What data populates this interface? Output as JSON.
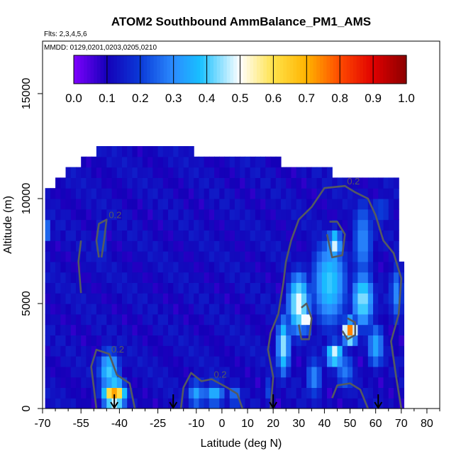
{
  "chart_data": {
    "type": "heatmap",
    "title": "ATOM2 Southbound AmmBalance_PM1_AMS",
    "flights_note": "Flts: 2,3,4,5,6",
    "dates_note": "MMDD: 0129,0201,0203,0205,0210",
    "xlabel": "Latitude (deg N)",
    "ylabel": "Altitude (m)",
    "xlim": [
      -70,
      85
    ],
    "ylim": [
      0,
      17500
    ],
    "x_ticks": [
      -70,
      -55,
      -40,
      -25,
      -10,
      0,
      10,
      20,
      30,
      40,
      50,
      60,
      70,
      80
    ],
    "x_tick_labels": [
      "-70",
      "-55",
      "-40",
      "-25",
      "-10",
      "0",
      "10",
      "20",
      "30",
      "40",
      "50",
      "60",
      "70",
      "80"
    ],
    "y_ticks": [
      0,
      5000,
      10000,
      15000
    ],
    "y_tick_labels": [
      "0",
      "5000",
      "10000",
      "15000"
    ],
    "colorbar": {
      "range": [
        0.0,
        1.0
      ],
      "tick_values": [
        0.0,
        0.1,
        0.2,
        0.3,
        0.4,
        0.5,
        0.6,
        0.7,
        0.8,
        0.9,
        1.0
      ],
      "tick_labels": [
        "0.0",
        "0.1",
        "0.2",
        "0.3",
        "0.4",
        "0.5",
        "0.6",
        "0.7",
        "0.8",
        "0.9",
        "1.0"
      ],
      "stops": [
        {
          "v": 0.0,
          "color": "#7f00ff"
        },
        {
          "v": 0.1,
          "color": "#1400b8"
        },
        {
          "v": 0.2,
          "color": "#0b3ad8"
        },
        {
          "v": 0.3,
          "color": "#2b8cff"
        },
        {
          "v": 0.38,
          "color": "#18c0ff"
        },
        {
          "v": 0.5,
          "color": "#ffffff"
        },
        {
          "v": 0.6,
          "color": "#ffe24a"
        },
        {
          "v": 0.7,
          "color": "#ffb400"
        },
        {
          "v": 0.8,
          "color": "#ff4a00"
        },
        {
          "v": 0.9,
          "color": "#e00000"
        },
        {
          "v": 1.0,
          "color": "#8b0000"
        }
      ]
    },
    "grid": {
      "lat_start": -68,
      "lat_step": 2,
      "alt_start": 0,
      "alt_step": 500,
      "columns": [
        [
          -68,
          0,
          10500
        ],
        [
          -66,
          0,
          10500
        ],
        [
          -64,
          0,
          11000
        ],
        [
          -62,
          0,
          11000
        ],
        [
          -60,
          0,
          11500
        ],
        [
          -58,
          0,
          11500
        ],
        [
          -56,
          0,
          11500
        ],
        [
          -54,
          0,
          12000
        ],
        [
          -52,
          0,
          12000
        ],
        [
          -50,
          0,
          12000
        ],
        [
          -48,
          0,
          12500
        ],
        [
          -46,
          0,
          12500
        ],
        [
          -44,
          0,
          12500
        ],
        [
          -42,
          0,
          12500
        ],
        [
          -40,
          0,
          12500
        ],
        [
          -38,
          0,
          12500
        ],
        [
          -36,
          0,
          12500
        ],
        [
          -34,
          0,
          12500
        ],
        [
          -32,
          0,
          12500
        ],
        [
          -30,
          0,
          12500
        ],
        [
          -28,
          0,
          12500
        ],
        [
          -26,
          0,
          12500
        ],
        [
          -24,
          0,
          12500
        ],
        [
          -22,
          0,
          12500
        ],
        [
          -20,
          0,
          12500
        ],
        [
          -18,
          0,
          12500
        ],
        [
          -16,
          0,
          12500
        ],
        [
          -14,
          0,
          12500
        ],
        [
          -12,
          0,
          12500
        ],
        [
          -10,
          0,
          12000
        ],
        [
          -8,
          0,
          12000
        ],
        [
          -6,
          0,
          12000
        ],
        [
          -4,
          0,
          12000
        ],
        [
          -2,
          0,
          12000
        ],
        [
          0,
          0,
          12000
        ],
        [
          2,
          0,
          12000
        ],
        [
          4,
          0,
          12000
        ],
        [
          6,
          0,
          12000
        ],
        [
          8,
          0,
          12000
        ],
        [
          10,
          0,
          12000
        ],
        [
          12,
          0,
          12000
        ],
        [
          14,
          0,
          12000
        ],
        [
          16,
          0,
          12000
        ],
        [
          18,
          0,
          12000
        ],
        [
          20,
          0,
          12000
        ],
        [
          22,
          0,
          12000
        ],
        [
          24,
          0,
          11500
        ],
        [
          26,
          0,
          11500
        ],
        [
          28,
          0,
          11500
        ],
        [
          30,
          0,
          11500
        ],
        [
          32,
          0,
          11500
        ],
        [
          34,
          0,
          11500
        ],
        [
          36,
          0,
          11500
        ],
        [
          38,
          0,
          11500
        ],
        [
          40,
          0,
          11500
        ],
        [
          42,
          0,
          11500
        ],
        [
          44,
          0,
          11000
        ],
        [
          46,
          0,
          11000
        ],
        [
          48,
          0,
          11000
        ],
        [
          50,
          0,
          11000
        ],
        [
          52,
          0,
          11000
        ],
        [
          54,
          0,
          11000
        ],
        [
          56,
          0,
          11000
        ],
        [
          58,
          0,
          11000
        ],
        [
          60,
          0,
          11000
        ],
        [
          62,
          0,
          11000
        ],
        [
          64,
          0,
          11000
        ],
        [
          66,
          0,
          11000
        ],
        [
          68,
          0,
          11000
        ],
        [
          70,
          0,
          7000
        ]
      ],
      "base_value": 0.06,
      "hotspots": [
        {
          "lat": -42,
          "alt": 700,
          "rlat": 5,
          "ralt": 700,
          "v": 0.72
        },
        {
          "lat": -44,
          "alt": 1800,
          "rlat": 5,
          "ralt": 1200,
          "v": 0.4
        },
        {
          "lat": -47,
          "alt": 8000,
          "rlat": 1.5,
          "ralt": 1500,
          "v": 0.3
        },
        {
          "lat": -10,
          "alt": 700,
          "rlat": 4,
          "ralt": 800,
          "v": 0.34
        },
        {
          "lat": -3,
          "alt": 700,
          "rlat": 5,
          "ralt": 700,
          "v": 0.36
        },
        {
          "lat": 5,
          "alt": 600,
          "rlat": 3,
          "ralt": 600,
          "v": 0.3
        },
        {
          "lat": 18,
          "alt": 900,
          "rlat": 2,
          "ralt": 900,
          "v": 0.22
        },
        {
          "lat": 24,
          "alt": 3000,
          "rlat": 3,
          "ralt": 1700,
          "v": 0.45
        },
        {
          "lat": 30,
          "alt": 5000,
          "rlat": 5,
          "ralt": 1700,
          "v": 0.5
        },
        {
          "lat": 33,
          "alt": 4200,
          "rlat": 1.5,
          "ralt": 500,
          "v": 0.78
        },
        {
          "lat": 42,
          "alt": 6000,
          "rlat": 8,
          "ralt": 2500,
          "v": 0.4
        },
        {
          "lat": 44,
          "alt": 7800,
          "rlat": 3,
          "ralt": 900,
          "v": 0.48
        },
        {
          "lat": 45,
          "alt": 7800,
          "rlat": 1,
          "ralt": 300,
          "v": 0.72
        },
        {
          "lat": 44,
          "alt": 2600,
          "rlat": 4,
          "ralt": 700,
          "v": 0.5
        },
        {
          "lat": 50,
          "alt": 3700,
          "rlat": 3,
          "ralt": 600,
          "v": 0.75
        },
        {
          "lat": 55,
          "alt": 8000,
          "rlat": 5,
          "ralt": 2500,
          "v": 0.3
        },
        {
          "lat": 55,
          "alt": 5200,
          "rlat": 5,
          "ralt": 1600,
          "v": 0.45
        },
        {
          "lat": 60,
          "alt": 3000,
          "rlat": 4,
          "ralt": 1300,
          "v": 0.35
        },
        {
          "lat": 68,
          "alt": 5500,
          "rlat": 3,
          "ralt": 1700,
          "v": 0.3
        },
        {
          "lat": 48,
          "alt": 1800,
          "rlat": 5,
          "ralt": 1200,
          "v": 0.28
        },
        {
          "lat": 36,
          "alt": 1500,
          "rlat": 4,
          "ralt": 1200,
          "v": 0.3
        },
        {
          "lat": 62,
          "alt": 9500,
          "rlat": 6,
          "ralt": 800,
          "v": 0.22
        },
        {
          "lat": -68,
          "alt": 8500,
          "rlat": 1,
          "ralt": 600,
          "v": 0.3
        }
      ]
    },
    "contours": [
      {
        "label": "0.2",
        "points": [
          [
            -49,
            0
          ],
          [
            -50,
            1000
          ],
          [
            -51,
            2000
          ],
          [
            -49,
            2800
          ],
          [
            -44,
            2600
          ],
          [
            -41,
            1600
          ],
          [
            -36,
            1200
          ],
          [
            -34,
            0
          ]
        ]
      },
      {
        "label": "0.2",
        "points": [
          [
            -48,
            7200
          ],
          [
            -49,
            8000
          ],
          [
            -48,
            8800
          ],
          [
            -45,
            9000
          ],
          [
            -46,
            8000
          ],
          [
            -47,
            7200
          ]
        ]
      },
      {
        "label": "0.2",
        "points": [
          [
            -16,
            0
          ],
          [
            -15,
            1000
          ],
          [
            -12,
            1700
          ],
          [
            -8,
            1300
          ],
          [
            -4,
            1400
          ],
          [
            2,
            1000
          ],
          [
            6,
            700
          ],
          [
            8,
            0
          ]
        ]
      },
      {
        "label": "0.2",
        "points": [
          [
            19,
            0
          ],
          [
            20,
            1500
          ],
          [
            18,
            2800
          ],
          [
            19,
            3600
          ],
          [
            22,
            4500
          ],
          [
            24,
            6000
          ],
          [
            25,
            7000
          ],
          [
            27,
            8000
          ],
          [
            30,
            9000
          ],
          [
            35,
            9600
          ],
          [
            40,
            10500
          ],
          [
            48,
            10600
          ],
          [
            52,
            10300
          ],
          [
            57,
            10000
          ],
          [
            60,
            9200
          ],
          [
            63,
            8000
          ],
          [
            67,
            7400
          ],
          [
            70,
            6200
          ],
          [
            69,
            4500
          ],
          [
            66,
            3200
          ],
          [
            68,
            1500
          ],
          [
            70,
            0
          ]
        ]
      },
      {
        "label": "",
        "points": [
          [
            30,
            4000
          ],
          [
            31,
            3300
          ],
          [
            34,
            3300
          ],
          [
            35,
            4300
          ],
          [
            33,
            5000
          ],
          [
            31,
            4800
          ]
        ]
      },
      {
        "label": "",
        "points": [
          [
            41,
            8300
          ],
          [
            43,
            7200
          ],
          [
            47,
            7300
          ],
          [
            48,
            8300
          ],
          [
            45,
            8900
          ],
          [
            42,
            8900
          ]
        ]
      },
      {
        "label": "",
        "points": [
          [
            47,
            3700
          ],
          [
            49,
            3300
          ],
          [
            52,
            3500
          ],
          [
            52,
            4100
          ],
          [
            49,
            4300
          ]
        ]
      },
      {
        "label": "",
        "points": [
          [
            -55,
            5500
          ],
          [
            -56,
            7000
          ],
          [
            -55,
            8000
          ]
        ]
      },
      {
        "label": "",
        "points": [
          [
            43,
            500
          ],
          [
            45,
            1100
          ],
          [
            50,
            1200
          ],
          [
            54,
            900
          ],
          [
            57,
            0
          ]
        ]
      }
    ],
    "flight_marker_lats": [
      -42,
      -19,
      20,
      61
    ]
  }
}
